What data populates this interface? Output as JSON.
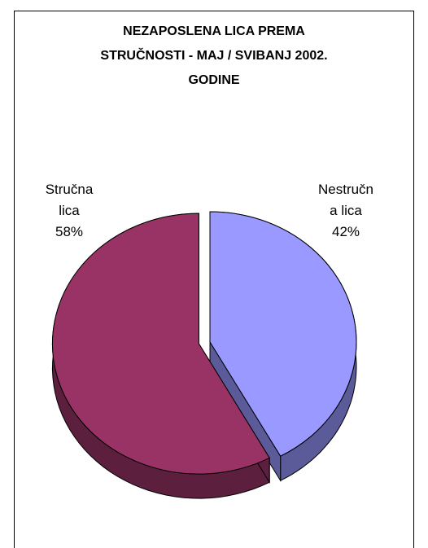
{
  "chart_data": {
    "type": "pie",
    "title_lines": [
      "NEZAPOSLENA LICA PREMA",
      "STRUČNOSTI - MAJ / SVIBANJ 2002.",
      "GODINE"
    ],
    "slices": [
      {
        "label_lines": [
          "Nestručn",
          "a lica"
        ],
        "value": 42,
        "value_label": "42%",
        "color": "#9999ff",
        "side_color": "#5b5b99",
        "exploded": false
      },
      {
        "label_lines": [
          "Stručna",
          "lica"
        ],
        "value": 58,
        "value_label": "58%",
        "color": "#993366",
        "side_color": "#5c1f3d",
        "exploded": true
      }
    ],
    "style": "3d-pie",
    "legend": "none"
  }
}
